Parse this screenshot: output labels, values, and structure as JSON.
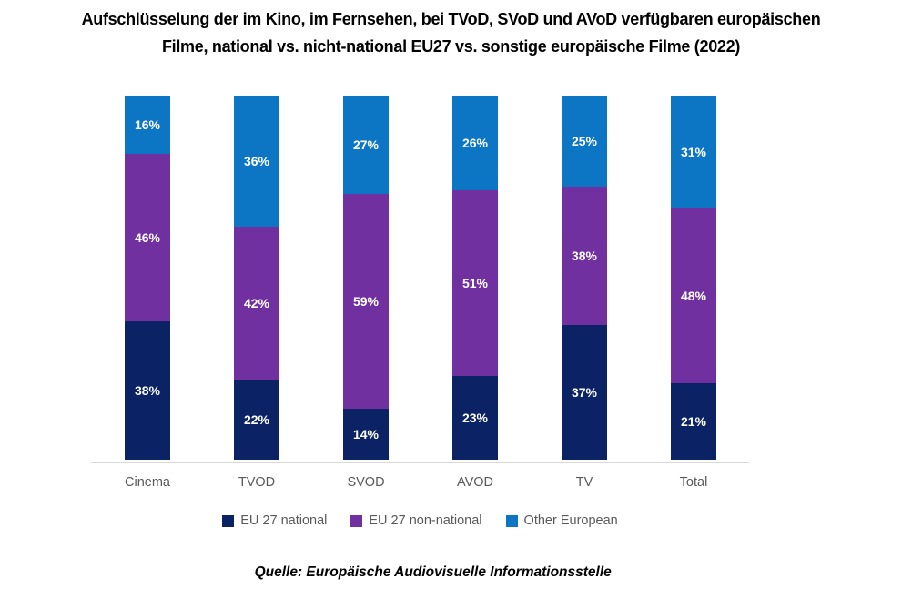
{
  "title": {
    "line1": "Aufschlüsselung der im Kino, im Fernsehen, bei TVoD, SVoD und AVoD verfügbaren europäischen",
    "line2": "Filme, national vs. nicht-national EU27 vs. sonstige europäische Filme (2022)"
  },
  "source": "Quelle: Europäische Audiovisuelle Informationsstelle",
  "colors": {
    "eu27_national": "#0b2265",
    "eu27_non_national": "#7030a0",
    "other_european": "#0d76c4",
    "axis_line": "#d9d9d9",
    "category_label": "#595959",
    "data_label": "#ffffff"
  },
  "chart_data": {
    "type": "bar",
    "stacked": true,
    "categories": [
      "Cinema",
      "TVOD",
      "SVOD",
      "AVOD",
      "TV",
      "Total"
    ],
    "series": [
      {
        "name": "EU 27 national",
        "color": "#0b2265",
        "values": [
          38,
          22,
          14,
          23,
          37,
          21
        ]
      },
      {
        "name": "EU 27 non-national",
        "color": "#7030a0",
        "values": [
          46,
          42,
          59,
          51,
          38,
          48
        ]
      },
      {
        "name": "Other European",
        "color": "#0d76c4",
        "values": [
          16,
          36,
          27,
          26,
          25,
          31
        ]
      }
    ],
    "value_suffix": "%",
    "ylim": [
      0,
      100
    ],
    "grid": false,
    "data_labels": true,
    "legend_position": "bottom"
  }
}
